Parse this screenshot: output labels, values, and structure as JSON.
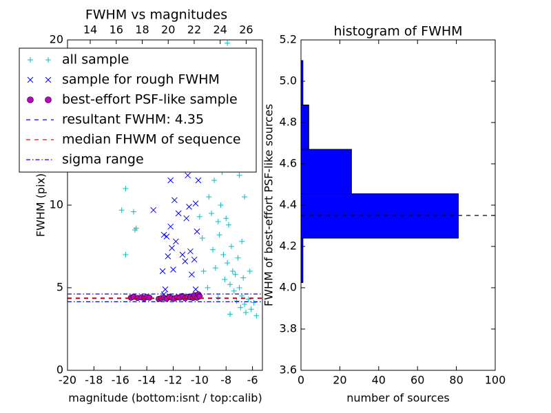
{
  "chart_data": [
    {
      "type": "scatter",
      "title": "FWHM vs magnitudes",
      "xlabel": "magnitude (bottom:isnt / top:calib)",
      "ylabel": "FWHM (pix)",
      "xlim": [
        -20,
        -5.25
      ],
      "xticks": [
        -20,
        -18,
        -16,
        -14,
        -12,
        -10,
        -8,
        -6
      ],
      "x2lim": [
        12.25,
        27.25
      ],
      "x2ticks": [
        14,
        16,
        18,
        20,
        22,
        24,
        26
      ],
      "ylim": [
        0,
        20
      ],
      "yticks": [
        0,
        5,
        10,
        15,
        20
      ],
      "legend": "upper left",
      "series": [
        {
          "name": "all sample",
          "marker": "plus",
          "color": "#00bfbf",
          "x": [
            -15.9,
            -15.6,
            -15.6,
            -15.0,
            -14.8,
            -14.9,
            -10,
            -9.8,
            -9.5,
            -9.3,
            -9.1,
            -9,
            -8.9,
            -8.8,
            -8.7,
            -8.6,
            -8.5,
            -8.4,
            -8.3,
            -8.2,
            -8.1,
            -8.0,
            -7.9,
            -7.8,
            -7.7,
            -7.6,
            -7.5,
            -7.4,
            -7.3,
            -7.2,
            -7.1,
            -7,
            -6.9,
            -6.8,
            -6.7,
            -6.6,
            -6.5,
            -6.3,
            -6.1,
            -5.9,
            -5.7,
            -8.3,
            -9.2,
            -7.9,
            -7.5,
            -7.0,
            -6.6,
            -8.8,
            -9.6,
            -10,
            -9.7,
            -9.4,
            -8.6,
            -7.7,
            -6.2,
            -6.8
          ],
          "values": [
            9.7,
            11,
            7,
            9.6,
            8.6,
            8.5,
            12.5,
            8,
            13,
            10.5,
            9.5,
            7.3,
            11.5,
            6.2,
            14,
            9,
            8.2,
            10,
            12,
            7,
            5.5,
            9.2,
            6.5,
            8.8,
            5.2,
            7.5,
            6,
            4.8,
            5.8,
            4.2,
            6.8,
            5,
            3.8,
            4.5,
            5.6,
            4,
            3.5,
            4.3,
            3.7,
            4.1,
            3.3,
            16,
            18,
            19.8,
            13.5,
            11.8,
            10.5,
            15.5,
            14.8,
            9.3,
            6,
            5,
            4.4,
            3.4,
            6,
            7.8
          ]
        },
        {
          "name": "sample for rough FWHM",
          "marker": "x",
          "color": "#0000ff",
          "x": [
            -11.5,
            -11.2,
            -10.9,
            -12.2,
            -11.6,
            -11.0,
            -12.2,
            -12.5,
            -11.8,
            -10.7,
            -11.3,
            -12.1,
            -12.4,
            -12.0,
            -11.1,
            -12.8,
            -10.6,
            -12.7,
            -12.6,
            -13.5,
            -12.7,
            -10.3,
            -10.2,
            -10.4,
            -10.5,
            -10.1,
            -10.3,
            -12.3,
            -10.8,
            -11.9
          ],
          "values": [
            12.2,
            12.8,
            11.8,
            11.5,
            9.5,
            9.2,
            8.7,
            8.1,
            7.8,
            7.2,
            7,
            7.4,
            6.9,
            6.1,
            6.6,
            6.0,
            5.8,
            4.6,
            4.9,
            9.7,
            8.2,
            10.1,
            8.4,
            6.7,
            12.5,
            11.5,
            4.9,
            12.4,
            9.9,
            10.3
          ]
        },
        {
          "name": "best-effort PSF-like sample",
          "marker": "circle",
          "color": "#bf00bf",
          "x": [
            -15.2,
            -15,
            -14.7,
            -14.4,
            -14.2,
            -14,
            -13.8,
            -13.1,
            -12.9,
            -12.7,
            -12.5,
            -12.3,
            -12.1,
            -11.9,
            -11.7,
            -11.5,
            -11.3,
            -11.1,
            -10.9,
            -10.7,
            -10.5,
            -10.4,
            -10.2,
            -10.1,
            -10.0
          ],
          "values": [
            4.4,
            4.45,
            4.38,
            4.42,
            4.36,
            4.44,
            4.4,
            4.32,
            4.37,
            4.4,
            4.33,
            4.45,
            4.38,
            4.35,
            4.42,
            4.4,
            4.5,
            4.36,
            4.45,
            4.42,
            4.38,
            4.55,
            4.4,
            4.6,
            4.48
          ]
        }
      ],
      "hlines": [
        {
          "name": "resultant FWHM: 4.35",
          "color": "#0000ff",
          "linestyle": "dashed",
          "values": [
            4.35
          ]
        },
        {
          "name": "median FHWM of sequence",
          "color": "#ff0000",
          "linestyle": "dashed",
          "values": [
            4.38
          ]
        },
        {
          "name": "sigma range",
          "color": "#0000ff",
          "linestyle": "dashdot",
          "values": [
            4.15,
            4.62
          ]
        }
      ]
    },
    {
      "type": "histogram",
      "orientation": "horizontal",
      "title": "histogram of FWHM",
      "xlabel": "number of sources",
      "ylabel": "FWHM of best-effort PSF-like sources",
      "color": "#0000ff",
      "bins": [
        4.025,
        4.24,
        4.455,
        4.67,
        4.885,
        5.1
      ],
      "values": [
        1,
        81,
        26,
        4,
        1
      ],
      "xlim": [
        0,
        100
      ],
      "xticks": [
        0,
        20,
        40,
        60,
        80,
        100
      ],
      "ylim": [
        3.6,
        5.2
      ],
      "yticks": [
        3.6,
        3.8,
        {
          "value": 4,
          "label": "4.0"
        },
        4.2,
        4.4,
        4.6,
        4.8,
        {
          "value": 5,
          "label": "5.0"
        },
        5.2
      ],
      "hline": 4.35,
      "hline_color": "#000000",
      "hline_style": "dashed"
    }
  ]
}
